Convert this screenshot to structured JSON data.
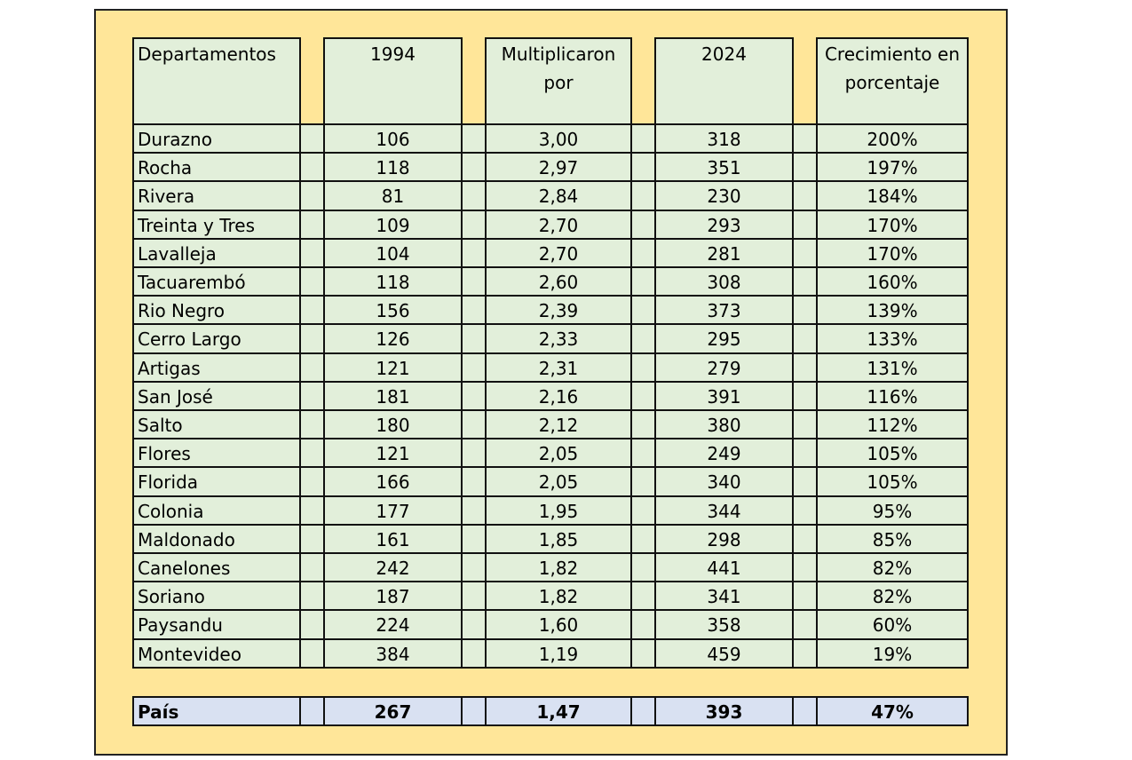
{
  "headers": [
    "Departamentos",
    "1994",
    "Multiplicaron por",
    "2024",
    "Crecimiento en porcentaje"
  ],
  "rows": [
    [
      "Durazno",
      "106",
      "3,00",
      "318",
      "200%"
    ],
    [
      "Rocha",
      "118",
      "2,97",
      "351",
      "197%"
    ],
    [
      "Rivera",
      "81",
      "2,84",
      "230",
      "184%"
    ],
    [
      "Treinta y Tres",
      "109",
      "2,70",
      "293",
      "170%"
    ],
    [
      "Lavalleja",
      "104",
      "2,70",
      "281",
      "170%"
    ],
    [
      "Tacuarembó",
      "118",
      "2,60",
      "308",
      "160%"
    ],
    [
      "Rio Negro",
      "156",
      "2,39",
      "373",
      "139%"
    ],
    [
      "Cerro Largo",
      "126",
      "2,33",
      "295",
      "133%"
    ],
    [
      "Artigas",
      "121",
      "2,31",
      "279",
      "131%"
    ],
    [
      "San José",
      "181",
      "2,16",
      "391",
      "116%"
    ],
    [
      "Salto",
      "180",
      "2,12",
      "380",
      "112%"
    ],
    [
      "Flores",
      "121",
      "2,05",
      "249",
      "105%"
    ],
    [
      "Florida",
      "166",
      "2,05",
      "340",
      "105%"
    ],
    [
      "Colonia",
      "177",
      "1,95",
      "344",
      "95%"
    ],
    [
      "Maldonado",
      "161",
      "1,85",
      "298",
      "85%"
    ],
    [
      "Canelones",
      "242",
      "1,82",
      "441",
      "82%"
    ],
    [
      "Soriano",
      "187",
      "1,82",
      "341",
      "82%"
    ],
    [
      "Paysandu",
      "224",
      "1,60",
      "358",
      "60%"
    ],
    [
      "Montevideo",
      "384",
      "1,19",
      "459",
      "19%"
    ]
  ],
  "total": [
    "País",
    "267",
    "1,47",
    "393",
    "47%"
  ],
  "colors": {
    "frame": "#FFE699",
    "cell": "#E2EFDA",
    "total": "#D9E1F2"
  }
}
